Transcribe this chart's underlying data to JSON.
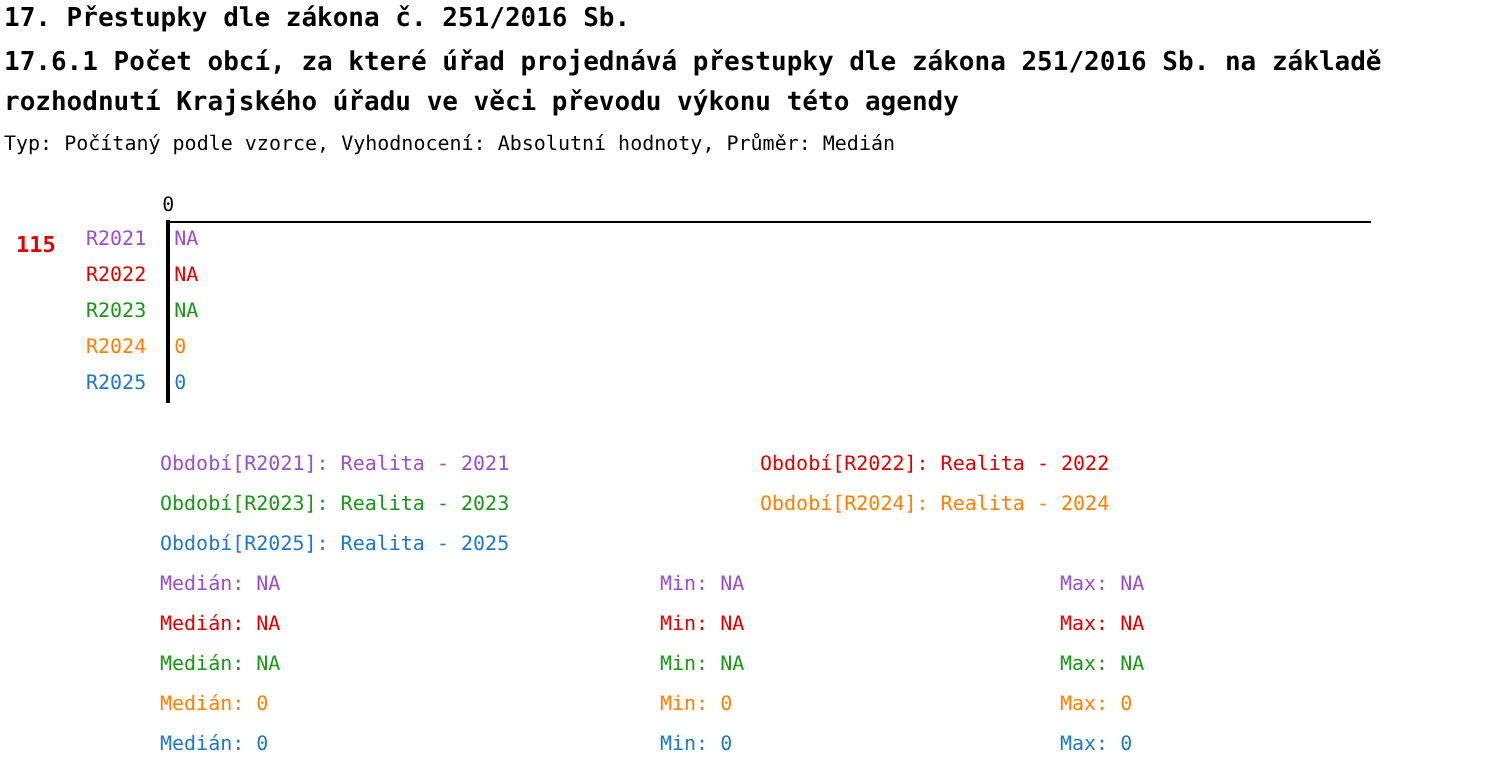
{
  "chart_data": {
    "type": "other",
    "title": "17. Přestupky dle zákona č. 251/2016 Sb.",
    "subtitle": "17.6.1 Počet obcí, za které úřad projednává přestupky dle zákona 251/2016 Sb. na základě rozhodnutí Krajského úřadu ve věci převodu výkonu této agendy",
    "categories": [
      "R2021",
      "R2022",
      "R2023",
      "R2024",
      "R2025"
    ],
    "series": [
      {
        "name": "Období[R2021]: Realita - 2021",
        "color": "#9b4fc8",
        "values": [
          null,
          null,
          null,
          null,
          null
        ],
        "value_labels": [
          "NA",
          null,
          null,
          null,
          null
        ]
      },
      {
        "name": "Období[R2022]: Realita - 2022",
        "color": "#e00000",
        "values": [
          null,
          null,
          null,
          null,
          null
        ],
        "value_labels": [
          null,
          "NA",
          null,
          null,
          null
        ]
      },
      {
        "name": "Období[R2023]: Realita - 2023",
        "color": "#1a961a",
        "values": [
          null,
          null,
          null,
          null,
          null
        ],
        "value_labels": [
          null,
          null,
          "NA",
          null,
          null
        ]
      },
      {
        "name": "Období[R2024]: Realita - 2024",
        "color": "#ff8000",
        "values": [
          null,
          null,
          null,
          0,
          null
        ],
        "value_labels": [
          null,
          null,
          null,
          "0",
          null
        ]
      },
      {
        "name": "Období[R2025]: Realita - 2025",
        "color": "#1e78c8",
        "values": [
          null,
          null,
          null,
          null,
          0
        ],
        "value_labels": [
          null,
          null,
          null,
          null,
          "0"
        ]
      }
    ],
    "annotations": [
      "Typ: Počítaný podle vzorce, Vyhodnocení: Absolutní hodnoty, Průměr: Medián",
      "115",
      "0",
      "Medián: NA",
      "Min: NA",
      "Max: NA",
      "Medián: NA",
      "Min: NA",
      "Max: NA",
      "Medián: NA",
      "Min: NA",
      "Max: NA",
      "Medián: 0",
      "Min: 0",
      "Max: 0",
      "Medián: 0",
      "Min: 0",
      "Max: 0"
    ]
  }
}
